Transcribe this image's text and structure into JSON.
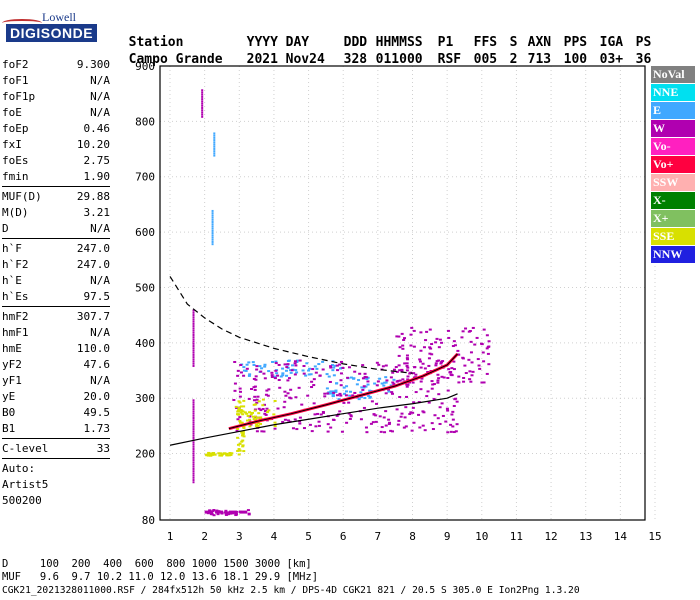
{
  "logo": {
    "line1": "Lowell",
    "line2": "DIGISONDE"
  },
  "header": {
    "labels": [
      "Station",
      "YYYY",
      "DAY",
      "DDD",
      "HHMMSS",
      "P1",
      "FFS",
      "S",
      "AXN",
      "PPS",
      "IGA",
      "PS"
    ],
    "values": [
      "Campo Grande",
      "2021",
      "Nov24",
      "328",
      "011000",
      "RSF",
      "005",
      "2",
      "713",
      "100",
      "03+",
      "36"
    ]
  },
  "params_group1": [
    {
      "k": "foF2",
      "v": "9.300"
    },
    {
      "k": "foF1",
      "v": "N/A"
    },
    {
      "k": "foF1p",
      "v": "N/A"
    },
    {
      "k": "foE",
      "v": "N/A"
    },
    {
      "k": "foEp",
      "v": "0.46"
    },
    {
      "k": "fxI",
      "v": "10.20"
    },
    {
      "k": "foEs",
      "v": "2.75"
    },
    {
      "k": "fmin",
      "v": "1.90"
    }
  ],
  "params_group2": [
    {
      "k": "MUF(D)",
      "v": "29.88"
    },
    {
      "k": "M(D)",
      "v": "3.21"
    },
    {
      "k": "D",
      "v": "N/A"
    }
  ],
  "params_group3": [
    {
      "k": "h`F",
      "v": "247.0"
    },
    {
      "k": "h`F2",
      "v": "247.0"
    },
    {
      "k": "h`E",
      "v": "N/A"
    },
    {
      "k": "h`Es",
      "v": "97.5"
    }
  ],
  "params_group4": [
    {
      "k": "hmF2",
      "v": "307.7"
    },
    {
      "k": "hmF1",
      "v": "N/A"
    },
    {
      "k": "hmE",
      "v": "110.0"
    },
    {
      "k": "yF2",
      "v": "47.6"
    },
    {
      "k": "yF1",
      "v": "N/A"
    },
    {
      "k": "yE",
      "v": "20.0"
    },
    {
      "k": "B0",
      "v": "49.5"
    },
    {
      "k": "B1",
      "v": "1.73"
    }
  ],
  "params_group5": [
    {
      "k": "C-level",
      "v": "33"
    }
  ],
  "auto": {
    "line1": "Auto:",
    "line2": "Artist5",
    "line3": "500200"
  },
  "legend": [
    {
      "label": "NoVal",
      "color": "#808080"
    },
    {
      "label": "NNE",
      "color": "#00e0f0"
    },
    {
      "label": "E",
      "color": "#40a8ff"
    },
    {
      "label": "W",
      "color": "#b000b0"
    },
    {
      "label": "Vo-",
      "color": "#ff20c0"
    },
    {
      "label": "Vo+",
      "color": "#ff0040"
    },
    {
      "label": "SSW",
      "color": "#ffb0b0"
    },
    {
      "label": "X-",
      "color": "#008000"
    },
    {
      "label": "X+",
      "color": "#80c060"
    },
    {
      "label": "SSE",
      "color": "#d8e000"
    },
    {
      "label": "NNW",
      "color": "#2020e0"
    }
  ],
  "bottom": {
    "d_line": "D     100  200  400  600  800 1000 1500 3000 [km]",
    "muf_line": "MUF   9.6  9.7 10.2 11.0 12.0 13.6 18.1 29.9 [MHz]",
    "file_line": "CGK21_2021328011000.RSF / 284fx512h 50 kHz 2.5 km / DPS-4D CGK21 821 / 20.5 S 305.0 E Ion2Png 1.3.20"
  },
  "chart_data": {
    "type": "scatter",
    "xlim": [
      1,
      15
    ],
    "ylim": [
      80,
      900
    ],
    "x_ticks": [
      1,
      2,
      3,
      4,
      5,
      6,
      7,
      8,
      9,
      10,
      11,
      12,
      13,
      14,
      15
    ],
    "y_ticks": [
      80,
      200,
      300,
      400,
      500,
      600,
      700,
      800,
      900
    ],
    "grid": true,
    "trace_o": [
      [
        2.7,
        245
      ],
      [
        3.5,
        258
      ],
      [
        4.5,
        272
      ],
      [
        5.5,
        288
      ],
      [
        6.5,
        305
      ],
      [
        7.5,
        322
      ],
      [
        8.3,
        340
      ],
      [
        9.0,
        360
      ],
      [
        9.3,
        380
      ]
    ],
    "profile_dashed": [
      [
        1,
        520
      ],
      [
        1.5,
        470
      ],
      [
        2,
        445
      ],
      [
        2.5,
        425
      ],
      [
        3,
        410
      ],
      [
        4,
        390
      ],
      [
        5,
        375
      ],
      [
        6,
        362
      ],
      [
        7,
        352
      ],
      [
        8,
        345
      ]
    ],
    "profile_solid_lower": [
      [
        1,
        215
      ],
      [
        2,
        228
      ],
      [
        3,
        240
      ],
      [
        4,
        252
      ],
      [
        5,
        262
      ],
      [
        6,
        272
      ],
      [
        7,
        282
      ],
      [
        8,
        290
      ],
      [
        9,
        300
      ],
      [
        9.3,
        308
      ]
    ],
    "es_trace": [
      [
        2.0,
        97
      ],
      [
        2.3,
        97
      ],
      [
        2.7,
        97
      ],
      [
        3.0,
        97
      ]
    ],
    "clusters": [
      {
        "x0": 2.0,
        "x1": 3.3,
        "y0": 90,
        "y1": 100,
        "color": "#b000b0"
      },
      {
        "x0": 2.0,
        "x1": 2.8,
        "y0": 198,
        "y1": 203,
        "color": "#d8e000"
      },
      {
        "x0": 3.0,
        "x1": 6.0,
        "y0": 340,
        "y1": 370,
        "color": "#40a8ff"
      },
      {
        "x0": 5.5,
        "x1": 7.5,
        "y0": 300,
        "y1": 340,
        "color": "#40a8ff"
      },
      {
        "x0": 2.8,
        "x1": 9.3,
        "y0": 240,
        "y1": 370,
        "color": "#b000b0"
      },
      {
        "x0": 7.5,
        "x1": 10.2,
        "y0": 330,
        "y1": 430,
        "color": "#b000b0"
      },
      {
        "x0": 2.8,
        "x1": 4.0,
        "y0": 250,
        "y1": 300,
        "color": "#d8e000"
      },
      {
        "x0": 2.9,
        "x1": 3.1,
        "y0": 200,
        "y1": 300,
        "color": "#d8e000"
      }
    ],
    "streaks": [
      {
        "x": 1.9,
        "y0": 810,
        "y1": 860,
        "color": "#b000b0"
      },
      {
        "x": 2.2,
        "y0": 580,
        "y1": 640,
        "color": "#40a8ff"
      },
      {
        "x": 2.25,
        "y0": 740,
        "y1": 780,
        "color": "#40a8ff"
      },
      {
        "x": 1.65,
        "y0": 360,
        "y1": 460,
        "color": "#b000b0"
      },
      {
        "x": 1.65,
        "y0": 150,
        "y1": 300,
        "color": "#b000b0"
      }
    ]
  }
}
